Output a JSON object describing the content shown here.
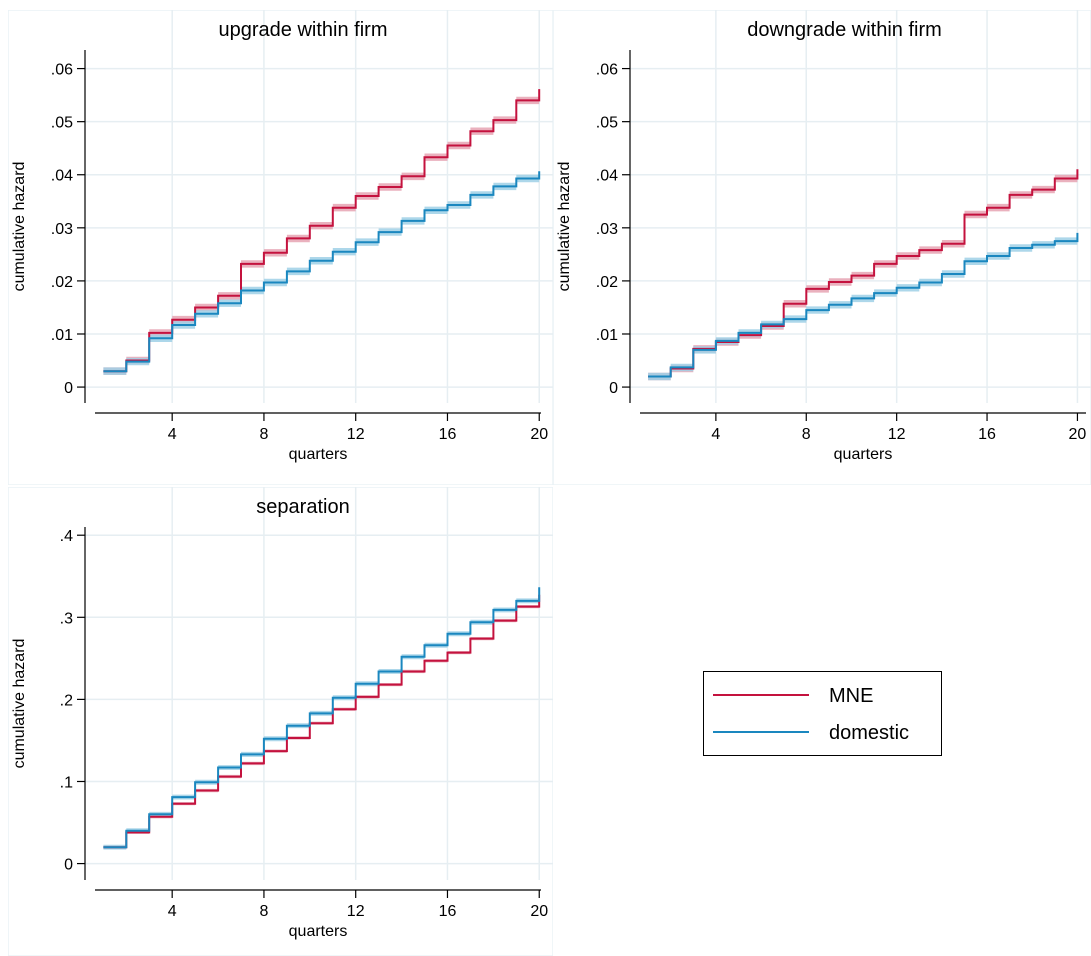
{
  "colors": {
    "mne": "#c4123e",
    "domestic": "#1a87bf",
    "mne_band": "#e6a3b3",
    "domestic_band": "#9fd0e6",
    "grid": "#e6eef2",
    "panel_bg": "#ffffff",
    "frame": "#eaf2f6",
    "title": "#1e2f4a"
  },
  "legend": {
    "position": "bottom-right",
    "items": [
      {
        "label": "MNE",
        "color": "#c4123e"
      },
      {
        "label": "domestic",
        "color": "#1a87bf"
      }
    ]
  },
  "chart_data": [
    {
      "type": "line",
      "step": true,
      "title": "upgrade within firm",
      "xlabel": "quarters",
      "ylabel": "cumulative hazard",
      "xlim": [
        0.2,
        20.6
      ],
      "ylim": [
        -0.003,
        0.0635
      ],
      "xticks": [
        4,
        8,
        12,
        16,
        20
      ],
      "xtick_labels": [
        "4",
        "8",
        "12",
        "16",
        "20"
      ],
      "yticks": [
        0,
        0.01,
        0.02,
        0.03,
        0.04,
        0.05,
        0.06
      ],
      "ytick_labels": [
        "0",
        ".01",
        ".02",
        ".03",
        ".04",
        ".05",
        ".06"
      ],
      "grid": true,
      "x": [
        1,
        2,
        3,
        4,
        5,
        6,
        7,
        8,
        9,
        10,
        11,
        12,
        13,
        14,
        15,
        16,
        17,
        18,
        19,
        20
      ],
      "series": [
        {
          "name": "MNE",
          "color_key": "mne",
          "band_color_key": "mne_band",
          "band": 0.0007,
          "values": [
            0.003,
            0.005,
            0.0102,
            0.0127,
            0.015,
            0.0172,
            0.0232,
            0.0253,
            0.028,
            0.0304,
            0.0338,
            0.036,
            0.0377,
            0.0397,
            0.0433,
            0.0455,
            0.0482,
            0.0503,
            0.054,
            0.0553
          ]
        },
        {
          "name": "domestic",
          "color_key": "domestic",
          "band_color_key": "domestic_band",
          "band": 0.0007,
          "values": [
            0.003,
            0.0048,
            0.0092,
            0.0117,
            0.0138,
            0.0158,
            0.0182,
            0.0197,
            0.0218,
            0.0238,
            0.0255,
            0.0273,
            0.0292,
            0.0313,
            0.0333,
            0.0343,
            0.0362,
            0.0378,
            0.0393,
            0.0398
          ]
        }
      ]
    },
    {
      "type": "line",
      "step": true,
      "title": "downgrade within firm",
      "xlabel": "quarters",
      "ylabel": "cumulative hazard",
      "xlim": [
        0.2,
        20.6
      ],
      "ylim": [
        -0.003,
        0.0635
      ],
      "xticks": [
        4,
        8,
        12,
        16,
        20
      ],
      "xtick_labels": [
        "4",
        "8",
        "12",
        "16",
        "20"
      ],
      "yticks": [
        0,
        0.01,
        0.02,
        0.03,
        0.04,
        0.05,
        0.06
      ],
      "ytick_labels": [
        "0",
        ".01",
        ".02",
        ".03",
        ".04",
        ".05",
        ".06"
      ],
      "grid": true,
      "x": [
        1,
        2,
        3,
        4,
        5,
        6,
        7,
        8,
        9,
        10,
        11,
        12,
        13,
        14,
        15,
        16,
        17,
        18,
        19,
        20
      ],
      "series": [
        {
          "name": "MNE",
          "color_key": "mne",
          "band_color_key": "mne_band",
          "band": 0.0007,
          "values": [
            0.002,
            0.0035,
            0.0072,
            0.0085,
            0.0098,
            0.0115,
            0.0157,
            0.0185,
            0.0198,
            0.021,
            0.0232,
            0.0247,
            0.0258,
            0.027,
            0.0325,
            0.0338,
            0.0362,
            0.0372,
            0.0393,
            0.0402
          ]
        },
        {
          "name": "domestic",
          "color_key": "domestic",
          "band_color_key": "domestic_band",
          "band": 0.0007,
          "values": [
            0.002,
            0.0037,
            0.007,
            0.0087,
            0.0102,
            0.0118,
            0.0128,
            0.0145,
            0.0155,
            0.0167,
            0.0177,
            0.0187,
            0.0197,
            0.0213,
            0.0237,
            0.0247,
            0.0262,
            0.0268,
            0.0275,
            0.0282
          ]
        }
      ]
    },
    {
      "type": "line",
      "step": true,
      "title": "separation",
      "xlabel": "quarters",
      "ylabel": "cumulative hazard",
      "xlim": [
        0.2,
        20.6
      ],
      "ylim": [
        -0.02,
        0.41
      ],
      "xticks": [
        4,
        8,
        12,
        16,
        20
      ],
      "xtick_labels": [
        "4",
        "8",
        "12",
        "16",
        "20"
      ],
      "yticks": [
        0,
        0.1,
        0.2,
        0.3,
        0.4
      ],
      "ytick_labels": [
        "0",
        ".1",
        ".2",
        ".3",
        ".4"
      ],
      "grid": true,
      "x": [
        1,
        2,
        3,
        4,
        5,
        6,
        7,
        8,
        9,
        10,
        11,
        12,
        13,
        14,
        15,
        16,
        17,
        18,
        19,
        20
      ],
      "series": [
        {
          "name": "MNE",
          "color_key": "mne",
          "band_color_key": "mne_band",
          "band": 0.002,
          "values": [
            0.02,
            0.038,
            0.057,
            0.073,
            0.089,
            0.106,
            0.122,
            0.137,
            0.153,
            0.171,
            0.188,
            0.203,
            0.218,
            0.234,
            0.247,
            0.257,
            0.274,
            0.296,
            0.313,
            0.325
          ]
        },
        {
          "name": "domestic",
          "color_key": "domestic",
          "band_color_key": "domestic_band",
          "band": 0.003,
          "values": [
            0.02,
            0.04,
            0.06,
            0.081,
            0.099,
            0.117,
            0.133,
            0.152,
            0.168,
            0.183,
            0.202,
            0.219,
            0.234,
            0.252,
            0.266,
            0.28,
            0.294,
            0.309,
            0.32,
            0.333
          ]
        }
      ]
    }
  ]
}
